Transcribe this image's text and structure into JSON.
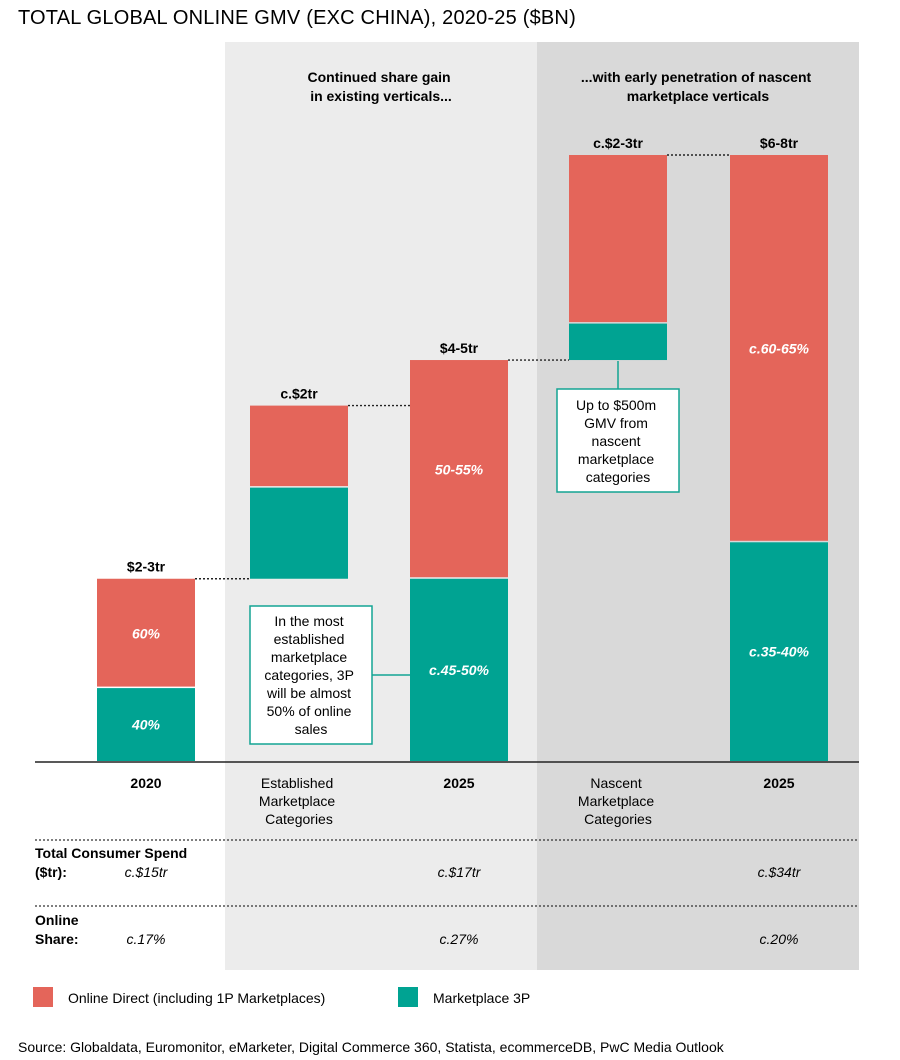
{
  "chart_data": {
    "type": "bar",
    "subtype": "waterfall-stacked",
    "title": "TOTAL GLOBAL ONLINE GMV (EXC CHINA), 2020-25 ($BN)",
    "sections": [
      {
        "label_lines": [
          "Continued share gain",
          "in existing verticals..."
        ]
      },
      {
        "label_lines": [
          "...with early penetration of nascent",
          "marketplace verticals"
        ]
      }
    ],
    "categories": [
      {
        "label_lines": [
          "2020"
        ],
        "total": "$2-3tr",
        "type": "total",
        "red_value": 1.2,
        "teal_value": 0.8,
        "base": 0,
        "red_label": "60%",
        "teal_label": "40%"
      },
      {
        "label_lines": [
          "Established",
          "Marketplace",
          "Categories"
        ],
        "total": "c.$2tr",
        "type": "increment",
        "red_value": 0.9,
        "teal_value": 1.0,
        "base": 2.0,
        "red_label": "",
        "teal_label": ""
      },
      {
        "label_lines": [
          "2025"
        ],
        "total": "$4-5tr",
        "type": "total",
        "red_value": 2.4,
        "teal_value": 2.0,
        "base": 0,
        "red_label": "50-55%",
        "teal_label": "c.45-50%"
      },
      {
        "label_lines": [
          "Nascent",
          "Marketplace",
          "Categories"
        ],
        "total": "c.$2-3tr",
        "type": "increment",
        "red_value": 1.85,
        "teal_value": 0.4,
        "base": 4.4,
        "red_label": "",
        "teal_label": ""
      },
      {
        "label_lines": [
          "2025"
        ],
        "total": "$6-8tr",
        "type": "total",
        "red_value": 4.25,
        "teal_value": 2.4,
        "base": 0,
        "red_label": "c.60-65%",
        "teal_label": "c.35-40%"
      }
    ],
    "ylim": [
      0,
      6.65
    ],
    "annotations": [
      {
        "lines": [
          "In the most",
          "established",
          "marketplace",
          "categories, 3P",
          "will be almost",
          "50% of online",
          "sales"
        ]
      },
      {
        "lines": [
          "Up to $500m",
          "GMV from",
          "nascent",
          "marketplace",
          "categories"
        ]
      }
    ],
    "table": {
      "rows": [
        {
          "label_lines": [
            "Total Consumer Spend",
            "($tr):"
          ],
          "values": [
            "c.$15tr",
            "",
            "c.$17tr",
            "",
            "c.$34tr"
          ]
        },
        {
          "label_lines": [
            "Online",
            "Share:"
          ],
          "values": [
            "c.17%",
            "",
            "c.27%",
            "",
            "c.20%"
          ]
        }
      ]
    },
    "legend": [
      {
        "name": "Online Direct (including 1P Marketplaces)",
        "color": "#e4655a"
      },
      {
        "name": "Marketplace 3P",
        "color": "#00a392"
      }
    ],
    "source": "Source: Globaldata, Euromonitor, eMarketer, Digital Commerce 360, Statista, ecommerceDB, PwC Media Outlook",
    "colors": {
      "red": "#e4655a",
      "teal": "#00a392",
      "section1_bg": "#ececec",
      "section2_bg": "#d9d9d9",
      "annotation_border": "#13a493"
    }
  }
}
